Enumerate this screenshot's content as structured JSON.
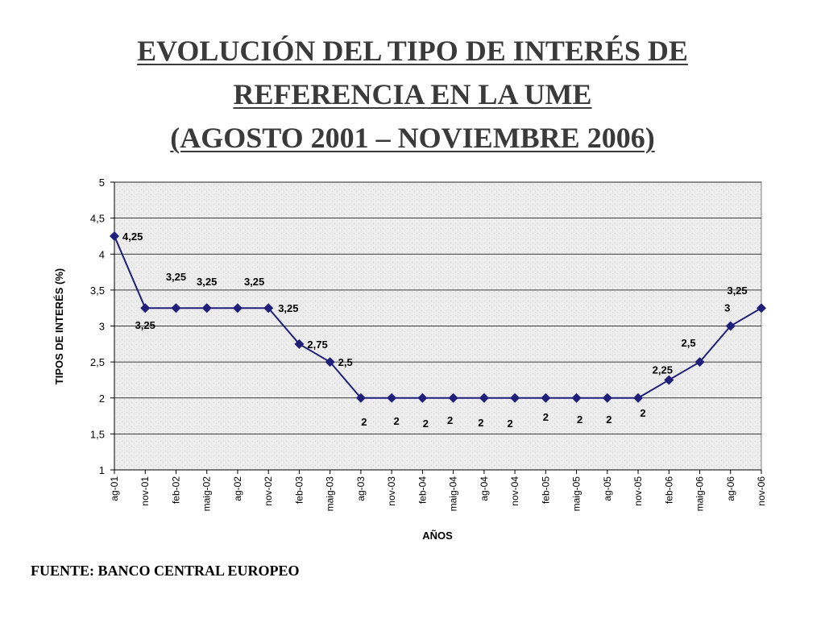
{
  "title": {
    "line1": "EVOLUCIÓN DEL TIPO DE INTERÉS DE",
    "line2": "REFERENCIA EN  LA UME",
    "line3": "(AGOSTO 2001 – NOVIEMBRE 2006)"
  },
  "source": "FUENTE: BANCO CENTRAL EUROPEO",
  "colors": {
    "series": "#1f1f7a",
    "plot_background": "#ececec",
    "gridline": "#000000"
  },
  "chart_data": {
    "type": "line",
    "x": [
      "ag-01",
      "nov-01",
      "feb-02",
      "maig-02",
      "ag-02",
      "nov-02",
      "feb-03",
      "maig-03",
      "ag-03",
      "nov-03",
      "feb-04",
      "maig-04",
      "ag-04",
      "nov-04",
      "feb-05",
      "maig-05",
      "ag-05",
      "nov-05",
      "feb-06",
      "maig-06",
      "ag-06",
      "nov-06"
    ],
    "series": [
      {
        "values": [
          4.25,
          3.25,
          3.25,
          3.25,
          3.25,
          3.25,
          2.75,
          2.5,
          2,
          2,
          2,
          2,
          2,
          2,
          2,
          2,
          2,
          2,
          2.25,
          2.5,
          3,
          3.25
        ],
        "data_labels": [
          "4,25",
          "3,25",
          "3,25",
          "3,25",
          "3,25",
          "3,25",
          "2,75",
          "2,5",
          "2",
          "2",
          "2",
          "2",
          "2",
          "2",
          "2",
          "2",
          "2",
          "2",
          "2,25",
          "2,5",
          "3",
          "3,25"
        ]
      }
    ],
    "xlabel": "AÑOS",
    "ylabel": "TIPOS DE INTERÉS (%)",
    "ylim": [
      1,
      5
    ],
    "yticks": [
      1,
      1.5,
      2,
      2.5,
      3,
      3.5,
      4,
      4.5,
      5
    ],
    "ytick_labels": [
      "1",
      "1,5",
      "2",
      "2,5",
      "3",
      "3,5",
      "4",
      "4,5",
      "5"
    ],
    "grid": true,
    "legend": "none"
  }
}
